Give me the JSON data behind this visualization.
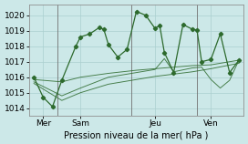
{
  "title": "",
  "xlabel": "Pression niveau de la mer( hPa )",
  "bg_color": "#cce8e8",
  "grid_color": "#aacfcf",
  "line_color": "#2d6a2d",
  "ylim": [
    1013.5,
    1020.7
  ],
  "xlim": [
    0,
    23
  ],
  "yticks": [
    1014,
    1015,
    1016,
    1017,
    1018,
    1019,
    1020
  ],
  "xtick_positions": [
    1.5,
    5.5,
    13.5,
    19.5
  ],
  "xtick_labels": [
    "Mer",
    "Sam",
    "Jeu",
    "Ven"
  ],
  "vline_positions": [
    3,
    11,
    18
  ],
  "series1_x": [
    0.5,
    1.5,
    2.5,
    3.5,
    5.0,
    5.5,
    6.5,
    7.5,
    8.0,
    8.5,
    9.5,
    10.5,
    11.5,
    12.5,
    13.5,
    14.0,
    14.5,
    15.5,
    16.5,
    17.5,
    18.0,
    18.5,
    19.5,
    20.5,
    21.5,
    22.5
  ],
  "series1_y": [
    1016.0,
    1014.7,
    1014.1,
    1015.8,
    1018.0,
    1018.6,
    1018.8,
    1019.2,
    1019.1,
    1018.1,
    1017.3,
    1017.8,
    1020.25,
    1020.0,
    1019.15,
    1019.35,
    1017.6,
    1016.3,
    1019.4,
    1019.1,
    1019.05,
    1017.0,
    1017.15,
    1018.8,
    1016.3,
    1017.1
  ],
  "series2_x": [
    0.5,
    3.5,
    5.5,
    8.5,
    11.5,
    13.5,
    15.5,
    17.5,
    19.5,
    22.5
  ],
  "series2_y": [
    1015.85,
    1015.7,
    1016.0,
    1016.25,
    1016.45,
    1016.55,
    1016.65,
    1016.75,
    1016.8,
    1017.1
  ],
  "series3_x": [
    0.5,
    3.5,
    5.5,
    8.5,
    11.5,
    13.5,
    15.5,
    17.5,
    19.5,
    22.5
  ],
  "series3_y": [
    1015.6,
    1014.5,
    1015.0,
    1015.55,
    1015.85,
    1016.05,
    1016.2,
    1016.35,
    1016.55,
    1016.9
  ],
  "series4_x": [
    0.5,
    3.5,
    5.5,
    8.5,
    11.5,
    13.5,
    14.5,
    15.5,
    17.5,
    18.5,
    19.5,
    20.5,
    21.5,
    22.5
  ],
  "series4_y": [
    1015.7,
    1014.8,
    1015.3,
    1016.0,
    1016.3,
    1016.5,
    1017.2,
    1016.35,
    1016.6,
    1016.65,
    1015.85,
    1015.3,
    1015.8,
    1017.1
  ]
}
